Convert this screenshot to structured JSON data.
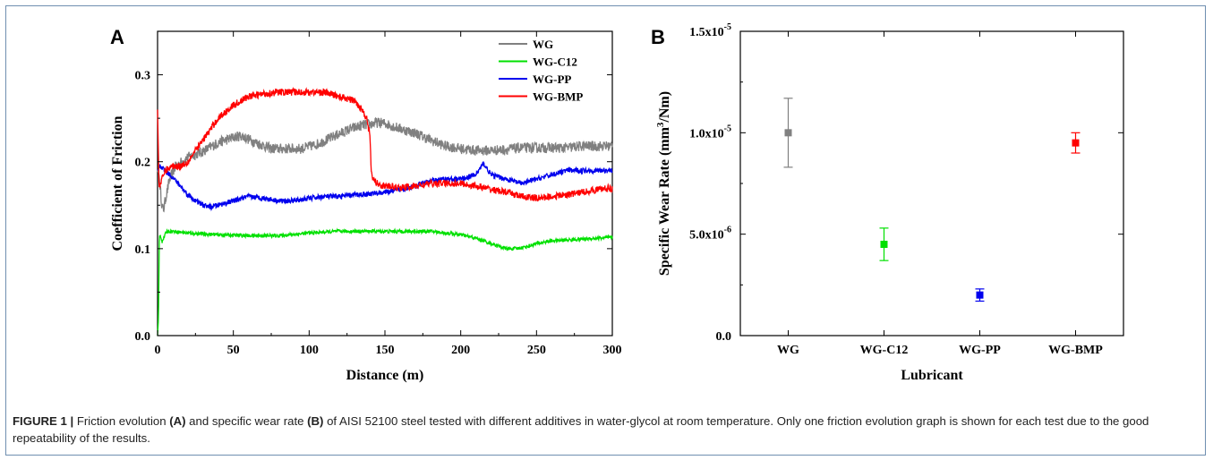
{
  "chart_data": [
    {
      "type": "line",
      "panel": "A",
      "xlabel": "Distance (m)",
      "ylabel": "Coefficient of Friction",
      "xlim": [
        0,
        300
      ],
      "ylim": [
        0,
        0.35
      ],
      "xticks": [
        "0",
        "50",
        "100",
        "150",
        "200",
        "250",
        "300"
      ],
      "yticks": [
        "0.0",
        "0.1",
        "0.2",
        "0.3"
      ],
      "legend_position": "top-right",
      "series": [
        {
          "name": "WG",
          "color": "#808080",
          "noise": 0.006,
          "x": [
            0,
            1,
            2,
            3,
            4,
            5,
            8,
            12,
            20,
            30,
            40,
            50,
            55,
            65,
            75,
            85,
            95,
            105,
            115,
            125,
            135,
            140,
            145,
            150,
            160,
            170,
            180,
            190,
            200,
            210,
            220,
            230,
            240,
            250,
            260,
            270,
            280,
            290,
            300
          ],
          "y": [
            0.19,
            0.185,
            0.165,
            0.148,
            0.145,
            0.155,
            0.18,
            0.195,
            0.205,
            0.212,
            0.222,
            0.228,
            0.23,
            0.222,
            0.215,
            0.215,
            0.215,
            0.22,
            0.228,
            0.236,
            0.242,
            0.243,
            0.245,
            0.244,
            0.238,
            0.233,
            0.225,
            0.218,
            0.215,
            0.213,
            0.213,
            0.214,
            0.216,
            0.216,
            0.216,
            0.216,
            0.218,
            0.218,
            0.218
          ]
        },
        {
          "name": "WG-C12",
          "color": "#00e000",
          "noise": 0.002,
          "x": [
            0,
            0.6,
            1.2,
            2,
            3,
            4,
            6,
            10,
            20,
            40,
            60,
            80,
            100,
            120,
            140,
            160,
            180,
            200,
            210,
            220,
            230,
            235,
            240,
            245,
            250,
            260,
            270,
            280,
            290,
            300
          ],
          "y": [
            0.0,
            0.02,
            0.115,
            0.115,
            0.108,
            0.112,
            0.12,
            0.12,
            0.118,
            0.116,
            0.115,
            0.115,
            0.118,
            0.12,
            0.12,
            0.12,
            0.12,
            0.116,
            0.112,
            0.106,
            0.1,
            0.1,
            0.101,
            0.103,
            0.106,
            0.109,
            0.11,
            0.111,
            0.112,
            0.113
          ]
        },
        {
          "name": "WG-PP",
          "color": "#0000ee",
          "noise": 0.003,
          "x": [
            0,
            2,
            5,
            10,
            15,
            20,
            25,
            30,
            35,
            40,
            50,
            60,
            70,
            80,
            90,
            100,
            110,
            120,
            130,
            140,
            150,
            160,
            170,
            180,
            190,
            200,
            210,
            215,
            220,
            230,
            240,
            250,
            260,
            270,
            280,
            290,
            300
          ],
          "y": [
            0.19,
            0.195,
            0.19,
            0.182,
            0.172,
            0.162,
            0.155,
            0.15,
            0.148,
            0.15,
            0.155,
            0.16,
            0.158,
            0.155,
            0.155,
            0.158,
            0.16,
            0.16,
            0.162,
            0.163,
            0.165,
            0.168,
            0.172,
            0.178,
            0.18,
            0.18,
            0.185,
            0.198,
            0.185,
            0.18,
            0.175,
            0.18,
            0.185,
            0.19,
            0.19,
            0.19,
            0.19
          ]
        },
        {
          "name": "WG-BMP",
          "color": "#ff0000",
          "noise": 0.004,
          "x": [
            0,
            1,
            2,
            5,
            10,
            15,
            20,
            30,
            40,
            50,
            60,
            70,
            80,
            90,
            100,
            110,
            120,
            130,
            135,
            138,
            140,
            141,
            142,
            145,
            150,
            160,
            170,
            180,
            190,
            200,
            210,
            220,
            230,
            240,
            250,
            260,
            270,
            280,
            290,
            300
          ],
          "y": [
            0.26,
            0.17,
            0.175,
            0.19,
            0.195,
            0.195,
            0.2,
            0.225,
            0.25,
            0.265,
            0.275,
            0.278,
            0.28,
            0.28,
            0.28,
            0.28,
            0.275,
            0.27,
            0.26,
            0.25,
            0.23,
            0.19,
            0.18,
            0.175,
            0.172,
            0.17,
            0.172,
            0.175,
            0.175,
            0.175,
            0.172,
            0.168,
            0.165,
            0.16,
            0.158,
            0.16,
            0.162,
            0.165,
            0.168,
            0.17
          ]
        }
      ]
    },
    {
      "type": "scatter",
      "panel": "B",
      "xlabel": "Lubricant",
      "ylabel": "Specific Wear Rate (mm³/Nm)",
      "categories": [
        "WG",
        "WG-C12",
        "WG-PP",
        "WG-BMP"
      ],
      "ylim": [
        0,
        1.5e-05
      ],
      "yticks": [
        0,
        5e-06,
        1e-05,
        1.5e-05
      ],
      "series": [
        {
          "name": "WG",
          "color": "#808080",
          "value": 1e-05,
          "error": 1.7e-06
        },
        {
          "name": "WG-C12",
          "color": "#00e000",
          "value": 4.5e-06,
          "error": 8e-07
        },
        {
          "name": "WG-PP",
          "color": "#0000ee",
          "value": 2e-06,
          "error": 3e-07
        },
        {
          "name": "WG-BMP",
          "color": "#ff0000",
          "value": 9.5e-06,
          "error": 5e-07
        }
      ]
    }
  ],
  "labels": {
    "panelA": "A",
    "panelB": "B",
    "ytickB": [
      {
        "mant": "0.0",
        "exp": ""
      },
      {
        "mant": "5.0x10",
        "exp": "-6"
      },
      {
        "mant": "1.0x10",
        "exp": "-5"
      },
      {
        "mant": "1.5x10",
        "exp": "-5"
      }
    ],
    "ylabelB_pre": "Specific Wear Rate (mm",
    "ylabelB_sup": "3",
    "ylabelB_post": "/Nm)"
  },
  "caption": {
    "fig": "FIGURE 1 |",
    "t1": " Friction evolution ",
    "a": "(A)",
    "t2": " and specific wear rate ",
    "b": "(B)",
    "t3": " of AISI 52100 steel tested with different additives in water-glycol at room temperature. Only one friction evolution graph is shown for each test due to the good repeatability of the results."
  }
}
